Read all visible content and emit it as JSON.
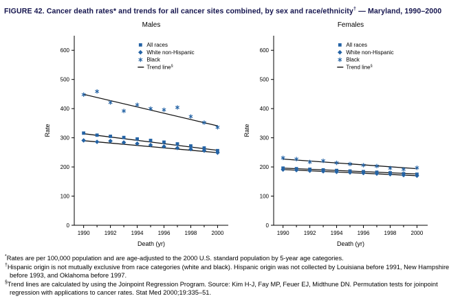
{
  "figure": {
    "title": {
      "pre": "FIGURE 42. Cancer death rates* and trends for all cancer sites combined, by sex and race/ethnicity",
      "sup": "†",
      "post": " — Maryland, 1990–2000"
    }
  },
  "colors": {
    "marker": "#2463a5",
    "trend": "#111111",
    "axis": "#000000",
    "title_text": "#15154e"
  },
  "chart_data": [
    {
      "type": "scatter",
      "title": "Males",
      "xlabel": "Death (yr)",
      "ylabel": "Rate",
      "xlim": [
        1989.3,
        2000.8
      ],
      "ylim": [
        0,
        650
      ],
      "xticks": [
        1990,
        1992,
        1994,
        1996,
        1998,
        2000
      ],
      "yticks": [
        0,
        100,
        200,
        300,
        400,
        500,
        600
      ],
      "years": [
        1990,
        1991,
        1992,
        1993,
        1994,
        1995,
        1996,
        1997,
        1998,
        1999,
        2000
      ],
      "legend_position": "top-right-inside",
      "grid": false,
      "series": [
        {
          "name": "All races",
          "marker": "square",
          "values": [
            316,
            309,
            305,
            301,
            296,
            291,
            285,
            279,
            272,
            265,
            256
          ]
        },
        {
          "name": "White non-Hispanic",
          "marker": "diamond",
          "values": [
            291,
            286,
            289,
            284,
            280,
            275,
            270,
            265,
            261,
            256,
            249
          ]
        },
        {
          "name": "Black",
          "marker": "asterisk",
          "values": [
            448,
            459,
            421,
            392,
            413,
            400,
            396,
            404,
            373,
            352,
            336
          ]
        }
      ],
      "trend": {
        "label": "Trend line",
        "sup": "§",
        "lines": [
          [
            1990,
            449,
            2000,
            341
          ],
          [
            1990,
            314,
            2000,
            257
          ],
          [
            1990,
            290,
            2000,
            249
          ]
        ]
      }
    },
    {
      "type": "scatter",
      "title": "Females",
      "xlabel": "Death (yr)",
      "ylabel": "Rate",
      "xlim": [
        1989.3,
        2000.8
      ],
      "ylim": [
        0,
        650
      ],
      "xticks": [
        1990,
        1992,
        1994,
        1996,
        1998,
        2000
      ],
      "yticks": [
        0,
        100,
        200,
        300,
        400,
        500,
        600
      ],
      "years": [
        1990,
        1991,
        1992,
        1993,
        1994,
        1995,
        1996,
        1997,
        1998,
        1999,
        2000
      ],
      "legend_position": "top-right-inside",
      "grid": false,
      "series": [
        {
          "name": "All races",
          "marker": "square",
          "values": [
            196,
            194,
            192,
            190,
            188,
            186,
            184,
            182,
            180,
            177,
            175
          ]
        },
        {
          "name": "White non-Hispanic",
          "marker": "diamond",
          "values": [
            191,
            189,
            187,
            185,
            183,
            181,
            179,
            177,
            175,
            172,
            170
          ]
        },
        {
          "name": "Black",
          "marker": "asterisk",
          "values": [
            231,
            227,
            217,
            221,
            214,
            210,
            206,
            203,
            196,
            192,
            197
          ]
        }
      ],
      "trend": {
        "label": "Trend line",
        "sup": "§",
        "lines": [
          [
            1990,
            227,
            2000,
            194
          ],
          [
            1990,
            196,
            2000,
            176
          ],
          [
            1990,
            191,
            2000,
            170
          ]
        ]
      }
    }
  ],
  "footnotes": [
    {
      "sup": "*",
      "text": "Rates are per 100,000 population and are age-adjusted to the 2000 U.S. standard population by 5-year age categories."
    },
    {
      "sup": "†",
      "text": "Hispanic origin is not mutually exclusive from race categories (white and black). Hispanic origin was not collected by Louisiana before 1991, New Hampshire before 1993, and Oklahoma before 1997."
    },
    {
      "sup": "§",
      "text": "Trend lines are calculated by using the Joinpoint Regression Program. Source: Kim H-J, Fay MP, Feuer EJ, Midthune DN. Permutation tests for joinpoint regression with applications to cancer rates. Stat Med 2000;19:335–51."
    }
  ]
}
